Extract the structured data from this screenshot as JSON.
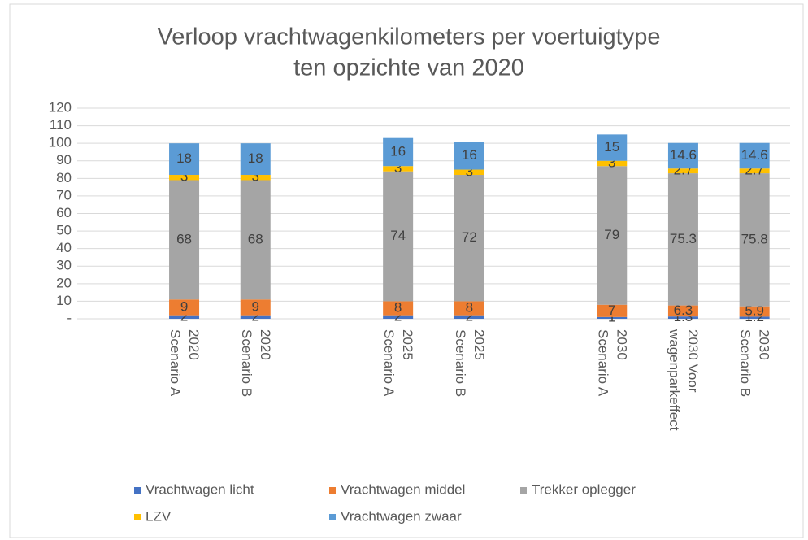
{
  "chart_data": {
    "type": "stacked_bar",
    "title": [
      "Verloop vrachtwagenkilometers per voertuigtype",
      "ten opzichte van 2020"
    ],
    "categories": [
      null,
      [
        "2020",
        "Scenario A"
      ],
      [
        "2020",
        "Scenario B"
      ],
      null,
      [
        "2025",
        "Scenario A"
      ],
      [
        "2025",
        "Scenario B"
      ],
      null,
      [
        "2030",
        "Scenario A"
      ],
      [
        "2030 Voor",
        "wagenparkeffect"
      ],
      [
        "2030",
        "Scenario B"
      ]
    ],
    "series": [
      {
        "name": "Vrachtwagen licht",
        "color": "#4472c4",
        "values": [
          null,
          2,
          2,
          null,
          2,
          2,
          null,
          1,
          1.3,
          1.2
        ]
      },
      {
        "name": "Vrachtwagen middel",
        "color": "#ed7d31",
        "values": [
          null,
          9,
          9,
          null,
          8,
          8,
          null,
          7,
          6.3,
          5.9
        ]
      },
      {
        "name": "Trekker oplegger",
        "color": "#a5a5a5",
        "values": [
          null,
          68,
          68,
          null,
          74,
          72,
          null,
          79,
          75.3,
          75.8
        ]
      },
      {
        "name": "LZV",
        "color": "#ffc000",
        "values": [
          null,
          3,
          3,
          null,
          3,
          3,
          null,
          3,
          2.7,
          2.7
        ]
      },
      {
        "name": "Vrachtwagen zwaar",
        "color": "#5b9bd5",
        "values": [
          null,
          18,
          18,
          null,
          16,
          16,
          null,
          15,
          14.6,
          14.6
        ]
      }
    ],
    "ylim": [
      0,
      120
    ],
    "yticks": [
      {
        "value": 0,
        "label": "-"
      },
      10,
      20,
      30,
      40,
      50,
      60,
      70,
      80,
      90,
      100,
      110,
      120
    ],
    "grid": true,
    "legend": "bottom"
  }
}
